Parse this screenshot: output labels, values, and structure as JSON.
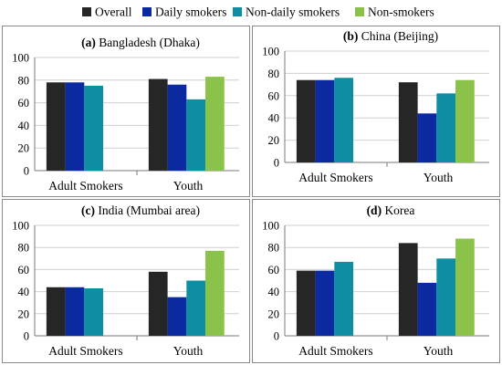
{
  "legend": {
    "items": [
      {
        "label": "Overall",
        "color": "#262626"
      },
      {
        "label": "Daily smokers",
        "color": "#0b2aa0"
      },
      {
        "label": "Non-daily smokers",
        "color": "#0f8ea3"
      },
      {
        "label": "Non-smokers",
        "color": "#8bc34a"
      }
    ]
  },
  "chart_data": [
    {
      "type": "bar",
      "panel_letter": "(a)",
      "title": "Bangladesh (Dhaka)",
      "categories": [
        "Adult Smokers",
        "Youth"
      ],
      "ylim": [
        0,
        100
      ],
      "yticks": [
        0,
        20,
        40,
        60,
        80,
        100
      ],
      "grid": true,
      "series": [
        {
          "name": "Overall",
          "values": [
            78,
            81
          ]
        },
        {
          "name": "Daily smokers",
          "values": [
            78,
            76
          ]
        },
        {
          "name": "Non-daily smokers",
          "values": [
            75,
            63
          ]
        },
        {
          "name": "Non-smokers",
          "values": [
            null,
            83
          ]
        }
      ]
    },
    {
      "type": "bar",
      "panel_letter": "(b)",
      "title": "China (Beijing)",
      "categories": [
        "Adult Smokers",
        "Youth"
      ],
      "ylim": [
        0,
        100
      ],
      "yticks": [
        0,
        20,
        40,
        60,
        80,
        100
      ],
      "grid": true,
      "series": [
        {
          "name": "Overall",
          "values": [
            74,
            72
          ]
        },
        {
          "name": "Daily smokers",
          "values": [
            74,
            44
          ]
        },
        {
          "name": "Non-daily smokers",
          "values": [
            76,
            62
          ]
        },
        {
          "name": "Non-smokers",
          "values": [
            null,
            74
          ]
        }
      ]
    },
    {
      "type": "bar",
      "panel_letter": "(c)",
      "title": "India (Mumbai area)",
      "categories": [
        "Adult Smokers",
        "Youth"
      ],
      "ylim": [
        0,
        100
      ],
      "yticks": [
        0,
        20,
        40,
        60,
        80,
        100
      ],
      "grid": true,
      "series": [
        {
          "name": "Overall",
          "values": [
            44,
            58
          ]
        },
        {
          "name": "Daily smokers",
          "values": [
            44,
            35
          ]
        },
        {
          "name": "Non-daily smokers",
          "values": [
            43,
            50
          ]
        },
        {
          "name": "Non-smokers",
          "values": [
            null,
            77
          ]
        }
      ]
    },
    {
      "type": "bar",
      "panel_letter": "(d)",
      "title": "Korea",
      "categories": [
        "Adult Smokers",
        "Youth"
      ],
      "ylim": [
        0,
        100
      ],
      "yticks": [
        0,
        20,
        40,
        60,
        80,
        100
      ],
      "grid": true,
      "series": [
        {
          "name": "Overall",
          "values": [
            59,
            84
          ]
        },
        {
          "name": "Daily smokers",
          "values": [
            59,
            48
          ]
        },
        {
          "name": "Non-daily smokers",
          "values": [
            67,
            70
          ]
        },
        {
          "name": "Non-smokers",
          "values": [
            null,
            88
          ]
        }
      ]
    }
  ]
}
